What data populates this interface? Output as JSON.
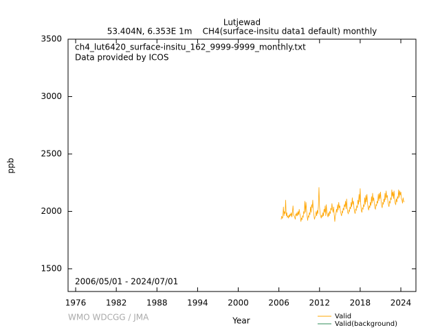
{
  "chart_data": {
    "type": "line",
    "title": "Lutjewad",
    "subtitle": "53.404N, 6.353E 1m    CH4(surface-insitu data1 default) monthly",
    "annotations": [
      "ch4_lut6420_surface-insitu_162_9999-9999_monthly.txt",
      "Data provided by ICOS",
      "2006/05/01 - 2024/07/01"
    ],
    "credit": "WMO WDCGG / JMA",
    "x_label": "Year",
    "y_label": "ppb",
    "xlim": [
      1974.88,
      2026.23
    ],
    "xticks": [
      1976,
      1982,
      1988,
      1994,
      2000,
      2006,
      2012,
      2018,
      2024
    ],
    "ylim": [
      1302,
      3500
    ],
    "yticks": [
      1500,
      2000,
      2500,
      3000,
      3500
    ],
    "grid": false,
    "x": [
      2006.333,
      2006.417,
      2006.5,
      2006.583,
      2006.667,
      2006.75,
      2006.833,
      2006.917,
      2007,
      2007.083,
      2007.167,
      2007.25,
      2007.333,
      2007.417,
      2007.5,
      2007.583,
      2007.667,
      2007.75,
      2007.833,
      2007.917,
      2008,
      2008.083,
      2008.167,
      2008.25,
      2008.333,
      2008.417,
      2008.5,
      2008.583,
      2008.667,
      2008.75,
      2008.833,
      2008.917,
      2009,
      2009.083,
      2009.167,
      2009.25,
      2009.333,
      2009.417,
      2009.5,
      2009.583,
      2009.667,
      2009.75,
      2009.833,
      2009.917,
      2010,
      2010.083,
      2010.167,
      2010.25,
      2010.333,
      2010.417,
      2010.5,
      2010.583,
      2010.667,
      2010.75,
      2010.833,
      2010.917,
      2011,
      2011.083,
      2011.167,
      2011.25,
      2011.333,
      2011.417,
      2011.5,
      2011.583,
      2011.667,
      2011.75,
      2011.833,
      2011.917,
      2012,
      2012.083,
      2012.167,
      2012.25,
      2012.333,
      2012.417,
      2012.5,
      2012.583,
      2012.667,
      2012.75,
      2012.833,
      2012.917,
      2013,
      2013.083,
      2013.167,
      2013.25,
      2013.333,
      2013.417,
      2013.5,
      2013.583,
      2013.667,
      2013.75,
      2013.833,
      2013.917,
      2014,
      2014.083,
      2014.167,
      2014.25,
      2014.333,
      2014.417,
      2014.5,
      2014.583,
      2014.667,
      2014.75,
      2014.833,
      2014.917,
      2015,
      2015.083,
      2015.167,
      2015.25,
      2015.333,
      2015.417,
      2015.5,
      2015.583,
      2015.667,
      2015.75,
      2015.833,
      2015.917,
      2016,
      2016.083,
      2016.167,
      2016.25,
      2016.333,
      2016.417,
      2016.5,
      2016.583,
      2016.667,
      2016.75,
      2016.833,
      2016.917,
      2017,
      2017.083,
      2017.167,
      2017.25,
      2017.333,
      2017.417,
      2017.5,
      2017.583,
      2017.667,
      2017.75,
      2017.833,
      2017.917,
      2018,
      2018.083,
      2018.167,
      2018.25,
      2018.333,
      2018.417,
      2018.5,
      2018.583,
      2018.667,
      2018.75,
      2018.833,
      2018.917,
      2019,
      2019.083,
      2019.167,
      2019.25,
      2019.333,
      2019.417,
      2019.5,
      2019.583,
      2019.667,
      2019.75,
      2019.833,
      2019.917,
      2020,
      2020.083,
      2020.167,
      2020.25,
      2020.333,
      2020.417,
      2020.5,
      2020.583,
      2020.667,
      2020.75,
      2020.833,
      2020.917,
      2021,
      2021.083,
      2021.167,
      2021.25,
      2021.333,
      2021.417,
      2021.5,
      2021.583,
      2021.667,
      2021.75,
      2021.833,
      2021.917,
      2022,
      2022.083,
      2022.167,
      2022.25,
      2022.333,
      2022.417,
      2022.5,
      2022.583,
      2022.667,
      2022.75,
      2022.833,
      2022.917,
      2023,
      2023.083,
      2023.167,
      2023.25,
      2023.333,
      2023.417,
      2023.5,
      2023.583,
      2023.667,
      2023.75,
      2023.833,
      2023.917,
      2024,
      2024.083,
      2024.167,
      2024.25,
      2024.333,
      2024.417,
      2024.5
    ],
    "series": [
      {
        "name": "Valid",
        "color": "#ffa500",
        "values": [
          1930,
          1960,
          1940,
          1950,
          2040,
          1960,
          2000,
          1980,
          2100,
          1960,
          1990,
          1950,
          1960,
          1940,
          1970,
          1950,
          1980,
          1960,
          1990,
          1950,
          1990,
          2050,
          1970,
          1960,
          1950,
          1930,
          1980,
          1960,
          1990,
          1960,
          2000,
          1970,
          2020,
          1980,
          1960,
          1910,
          1940,
          1930,
          1960,
          1950,
          2000,
          1980,
          2090,
          1990,
          2080,
          2010,
          1960,
          1920,
          1960,
          1950,
          1990,
          1970,
          2040,
          1990,
          2060,
          2030,
          2100,
          2010,
          1970,
          1930,
          1950,
          1960,
          2000,
          1960,
          2010,
          1980,
          2050,
          2210,
          2040,
          1980,
          1960,
          1940,
          1970,
          1950,
          1990,
          1960,
          2020,
          1990,
          2050,
          1960,
          2060,
          1990,
          1970,
          1950,
          1990,
          1960,
          2000,
          1980,
          2030,
          2010,
          2070,
          2020,
          1990,
          2040,
          1970,
          1910,
          1960,
          1980,
          2020,
          1990,
          2060,
          2010,
          2080,
          2030,
          2050,
          2000,
          1980,
          1960,
          2000,
          1990,
          2030,
          2010,
          2060,
          2040,
          2090,
          2020,
          2110,
          2030,
          1990,
          1980,
          2010,
          2000,
          2040,
          2020,
          2080,
          2040,
          2120,
          2060,
          2090,
          2030,
          2000,
          1980,
          2020,
          2010,
          2050,
          2030,
          2100,
          2060,
          2150,
          2080,
          2200,
          2060,
          2010,
          1990,
          2030,
          2020,
          2060,
          2040,
          2120,
          2060,
          2140,
          2080,
          2150,
          2070,
          2030,
          2010,
          2050,
          2030,
          2080,
          2050,
          2130,
          2070,
          2160,
          2090,
          2120,
          2070,
          2030,
          2020,
          2060,
          2050,
          2090,
          2070,
          2150,
          2090,
          2160,
          2110,
          2170,
          2090,
          2050,
          2030,
          2080,
          2060,
          2110,
          2080,
          2160,
          2100,
          2180,
          2120,
          2140,
          2090,
          2060,
          2040,
          2090,
          2070,
          2120,
          2100,
          2190,
          2130,
          2170,
          2110,
          2180,
          2110,
          2070,
          2060,
          2110,
          2080,
          2130,
          2110,
          2190,
          2120,
          2180,
          2140,
          2170,
          2110,
          2100,
          2070,
          2120,
          2090,
          2080
        ]
      }
    ],
    "extra_legend": [
      {
        "name": "Valid(background)",
        "color": "#2e8b57"
      }
    ]
  }
}
